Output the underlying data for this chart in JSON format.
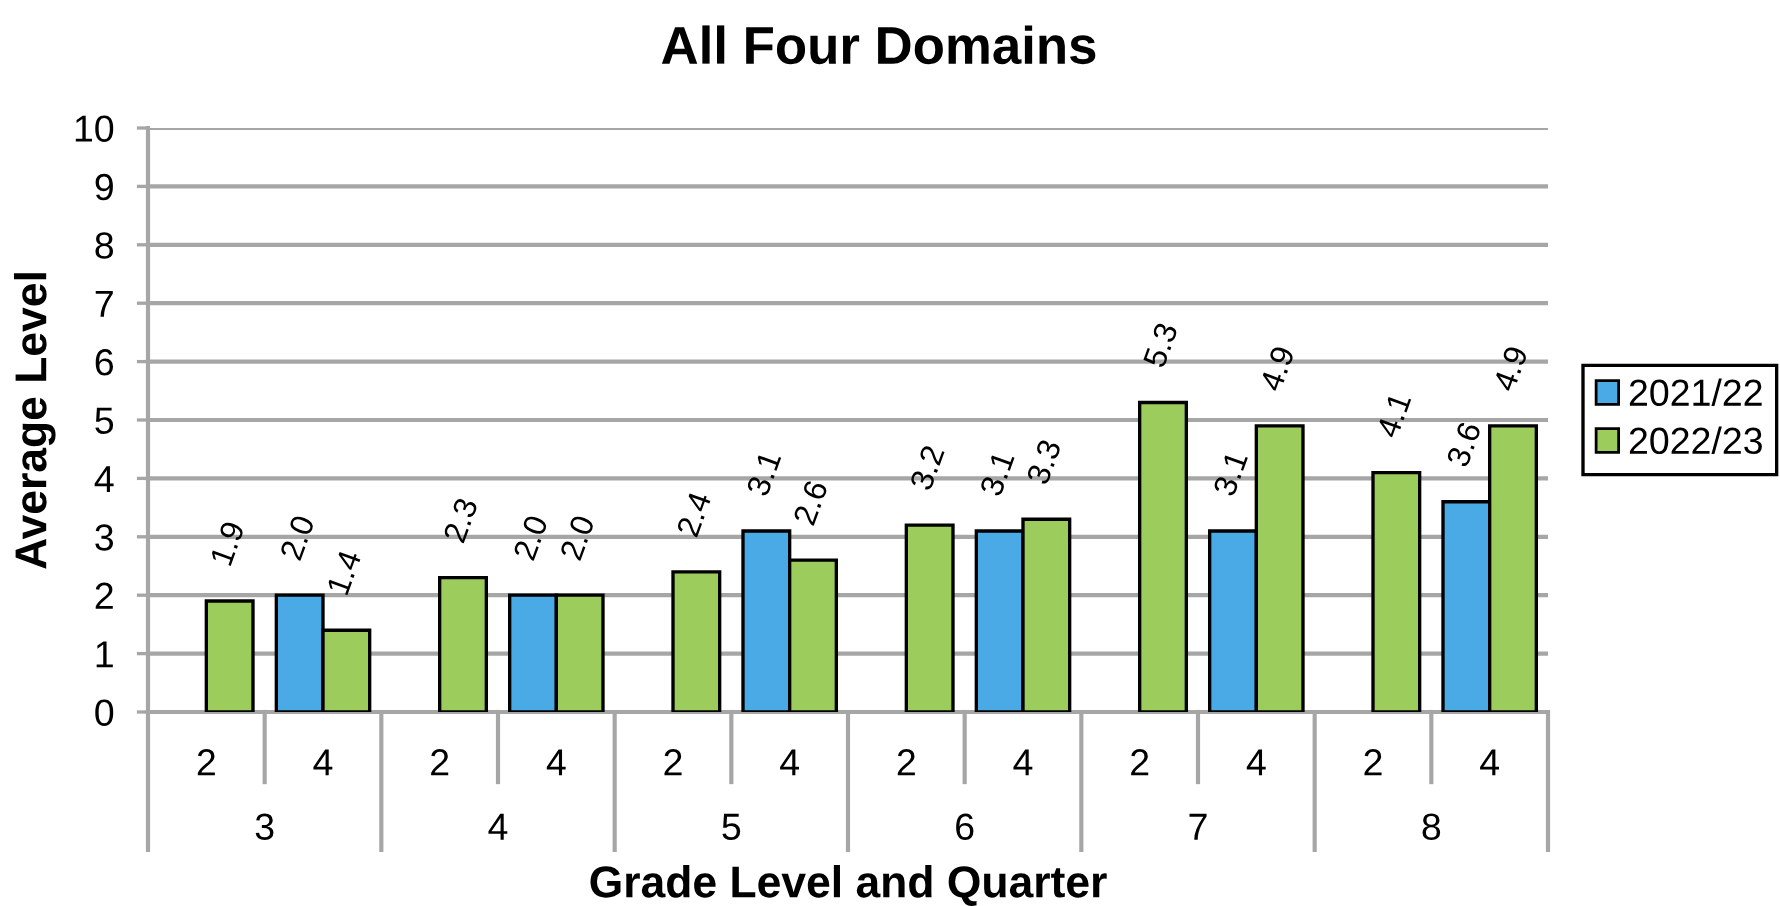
{
  "chart_data": {
    "type": "bar",
    "title": "All Four Domains",
    "xlabel": "Grade Level and Quarter",
    "ylabel": "Average Level",
    "categories": [
      "2",
      "4",
      "2",
      "4",
      "2",
      "4",
      "2",
      "4",
      "2",
      "4",
      "2",
      "4"
    ],
    "annotations": [
      "3",
      "4",
      "5",
      "6",
      "7",
      "8"
    ],
    "series": [
      {
        "name": "2021/22",
        "color": "#4aaae6",
        "values": [
          null,
          2.0,
          null,
          2.0,
          null,
          3.1,
          null,
          3.1,
          null,
          3.1,
          null,
          3.6
        ],
        "value_labels": [
          null,
          "2.0",
          null,
          "2.0",
          null,
          "3.1",
          null,
          "3.1",
          null,
          "3.1",
          null,
          "3.6"
        ]
      },
      {
        "name": "2022/23",
        "color": "#9ccc5c",
        "values": [
          1.9,
          1.4,
          2.3,
          2.0,
          2.4,
          2.6,
          3.2,
          3.3,
          5.3,
          4.9,
          4.1,
          4.9
        ],
        "value_labels": [
          "1.9",
          "1.4",
          "2.3",
          "2.0",
          "2.4",
          "2.6",
          "3.2",
          "3.3",
          "5.3",
          "4.9",
          "4.1",
          "4.9"
        ]
      }
    ],
    "ylim": [
      0,
      10
    ],
    "yticks": [
      0,
      1,
      2,
      3,
      4,
      5,
      6,
      7,
      8,
      9,
      10
    ],
    "grid": "y",
    "legend": "right"
  }
}
